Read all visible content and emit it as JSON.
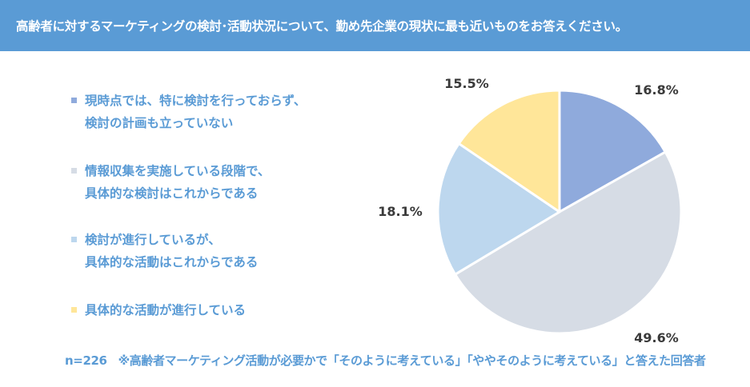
{
  "header": {
    "title": "高齢者に対するマーケティングの検討･活動状況について、勤め先企業の現状に最も近いものをお答えください。"
  },
  "chart_data": {
    "type": "pie",
    "categories": [
      "現時点では、特に検討を行っておらず、検討の計画も立っていない",
      "情報収集を実施している段階で、具体的な検討はこれからである",
      "検討が進行しているが、具体的な活動はこれからである",
      "具体的な活動が進行している"
    ],
    "values": [
      16.8,
      49.6,
      18.1,
      15.5
    ],
    "value_labels": [
      "16.8%",
      "49.6%",
      "18.1%",
      "15.5%"
    ],
    "colors": [
      "#8faadc",
      "#d6dce5",
      "#bdd7ee",
      "#ffe699"
    ],
    "start_angle": "12 o'clock",
    "direction": "clockwise"
  },
  "legend": {
    "items": [
      {
        "line1": "現時点では、特に検討を行っておらず、",
        "line2": "検討の計画も立っていない",
        "color": "#8faadc"
      },
      {
        "line1": "情報収集を実施している段階で、",
        "line2": "具体的な検討はこれからである",
        "color": "#d6dce5"
      },
      {
        "line1": "検討が進行しているが、",
        "line2": "具体的な活動はこれからである",
        "color": "#bdd7ee"
      },
      {
        "line1": "具体的な活動が進行している",
        "line2": "",
        "color": "#ffe699"
      }
    ]
  },
  "footnote": {
    "n": "n=226",
    "text": "※高齢者マーケティング活動が必要かで「そのように考えている」「ややそのように考えている」と答えた回答者"
  }
}
